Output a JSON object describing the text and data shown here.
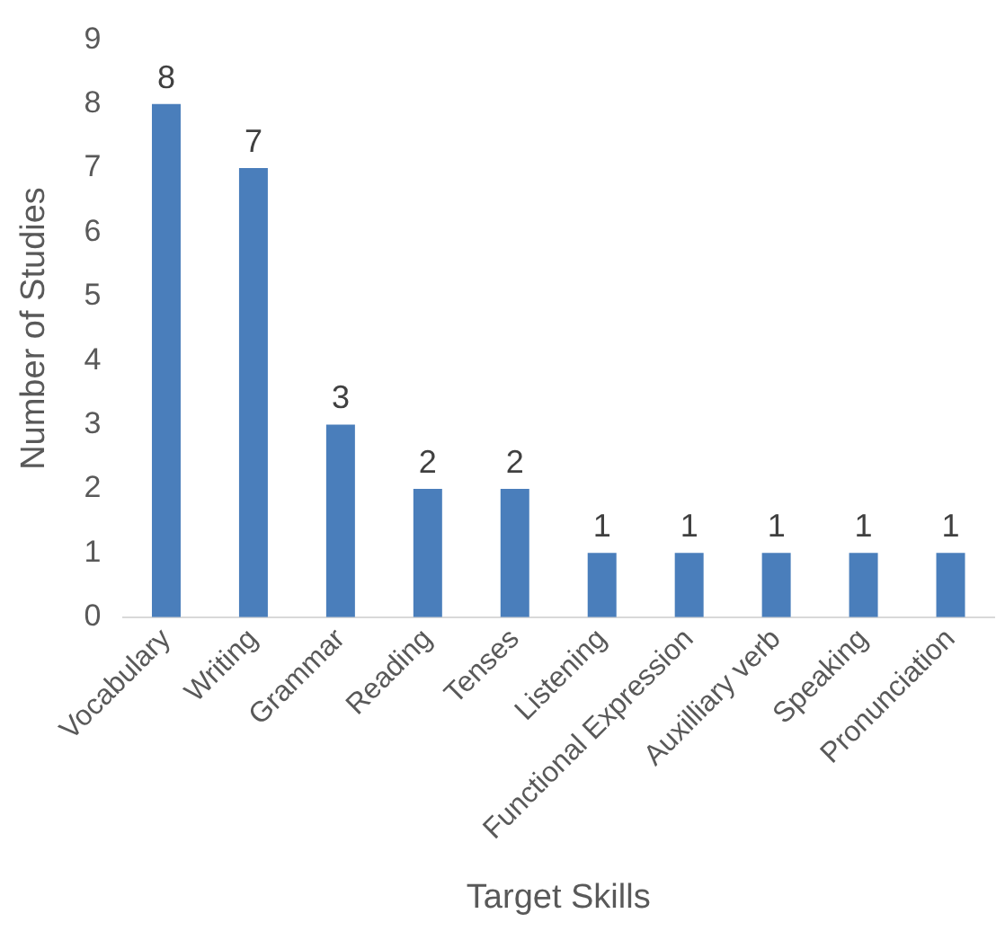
{
  "chart_data": {
    "type": "bar",
    "xlabel": "Target Skills",
    "ylabel": "Number of Studies",
    "categories": [
      "Vocabulary",
      "Writing",
      "Grammar",
      "Reading",
      "Tenses",
      "Listening",
      "Functional Expression",
      "Auxilliary verb",
      "Speaking",
      "Pronunciation"
    ],
    "values": [
      8,
      7,
      3,
      2,
      2,
      1,
      1,
      1,
      1,
      1
    ],
    "color": "#4a7ebb",
    "ylim": [
      0,
      9
    ],
    "yticks": [
      0,
      1,
      2,
      3,
      4,
      5,
      6,
      7,
      8,
      9
    ],
    "grid": false,
    "legend": false,
    "data_labels": true
  }
}
